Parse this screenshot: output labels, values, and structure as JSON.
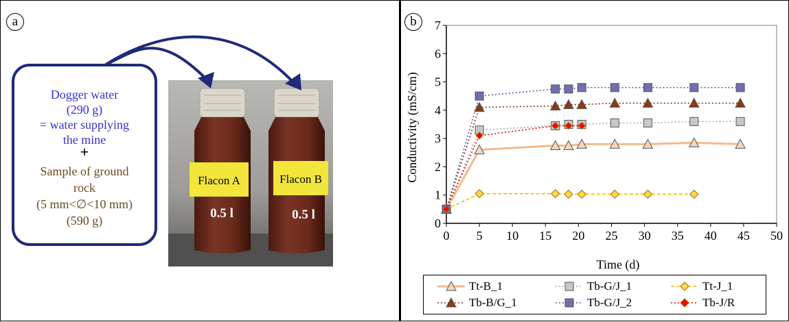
{
  "panel_a": {
    "label": "a",
    "callout_lines_blue": [
      "Dogger water",
      "(290 g)",
      "= water supplying",
      "the mine"
    ],
    "plus_sign": "+",
    "callout_lines_brown": [
      "Sample of ground",
      "rock",
      "(5 mm<∅<10 mm)",
      "(590 g)"
    ],
    "bottle_a_label": "Flacon A",
    "bottle_b_label": "Flacon B",
    "bottle_a_volume": "0.5 l",
    "bottle_b_volume": "0.5 l",
    "colors": {
      "callout_border": "#1f2a78",
      "arrow": "#1f2a78",
      "label_yellow": "#f2e63a",
      "bottle": "#6a2a1c"
    }
  },
  "panel_b": {
    "label": "b"
  },
  "chart_data": {
    "type": "line",
    "xlabel": "Time (d)",
    "ylabel": "Conductivity (mS/cm)",
    "xlim": [
      0,
      50
    ],
    "ylim": [
      0,
      7
    ],
    "x_ticks": [
      0,
      5,
      10,
      15,
      20,
      25,
      30,
      35,
      40,
      45,
      50
    ],
    "y_ticks": [
      0,
      1,
      2,
      3,
      4,
      5,
      6,
      7
    ],
    "grid": false,
    "legend_position": "bottom",
    "series": [
      {
        "name": "Tt-B_1",
        "marker": "triangle",
        "line": "solid",
        "color": "#f5b98a",
        "marker_fill": "#f0d8c0",
        "x": [
          0,
          5,
          16.5,
          18.5,
          20.5,
          25.5,
          30.5,
          37.5,
          44.5
        ],
        "y": [
          0.5,
          2.6,
          2.75,
          2.75,
          2.8,
          2.8,
          2.8,
          2.85,
          2.8
        ]
      },
      {
        "name": "Tb-G/J_1",
        "marker": "square",
        "line": "dotted",
        "color": "#aaaaaa",
        "marker_fill": "#c8c8c8",
        "x": [
          0,
          5,
          16.5,
          18.5,
          20.5,
          25.5,
          30.5,
          37.5,
          44.5
        ],
        "y": [
          0.5,
          3.3,
          3.45,
          3.5,
          3.5,
          3.55,
          3.55,
          3.6,
          3.6
        ]
      },
      {
        "name": "Tt-J_1",
        "marker": "diamond",
        "line": "dashed",
        "color": "#e8c000",
        "marker_fill": "#ffd84a",
        "x": [
          0,
          5,
          16.5,
          18.5,
          20.5,
          25.5,
          30.5,
          37.5
        ],
        "y": [
          0.5,
          1.05,
          1.05,
          1.03,
          1.03,
          1.03,
          1.03,
          1.03
        ]
      },
      {
        "name": "Tb-B/G_1",
        "marker": "triangle",
        "line": "dotted",
        "color": "#7a2e0e",
        "marker_fill": "#8b3a14",
        "x": [
          0,
          5,
          16.5,
          18.5,
          20.5,
          25.5,
          30.5,
          37.5,
          44.5
        ],
        "y": [
          0.5,
          4.1,
          4.15,
          4.2,
          4.2,
          4.25,
          4.25,
          4.25,
          4.25
        ]
      },
      {
        "name": "Tb-G/J_2",
        "marker": "square",
        "line": "dotted",
        "color": "#5a5aa0",
        "marker_fill": "#7070b0",
        "x": [
          0,
          5,
          16.5,
          18.5,
          20.5,
          25.5,
          30.5,
          37.5,
          44.5
        ],
        "y": [
          0.5,
          4.5,
          4.75,
          4.75,
          4.8,
          4.8,
          4.8,
          4.8,
          4.8
        ]
      },
      {
        "name": "Tb-J/R",
        "marker": "diamond",
        "line": "dotted",
        "color": "#e00000",
        "marker_fill": "#ff0000",
        "x": [
          0,
          5,
          16.5,
          18.5,
          20.5
        ],
        "y": [
          0.5,
          3.1,
          3.45,
          3.45,
          3.45
        ]
      }
    ]
  }
}
